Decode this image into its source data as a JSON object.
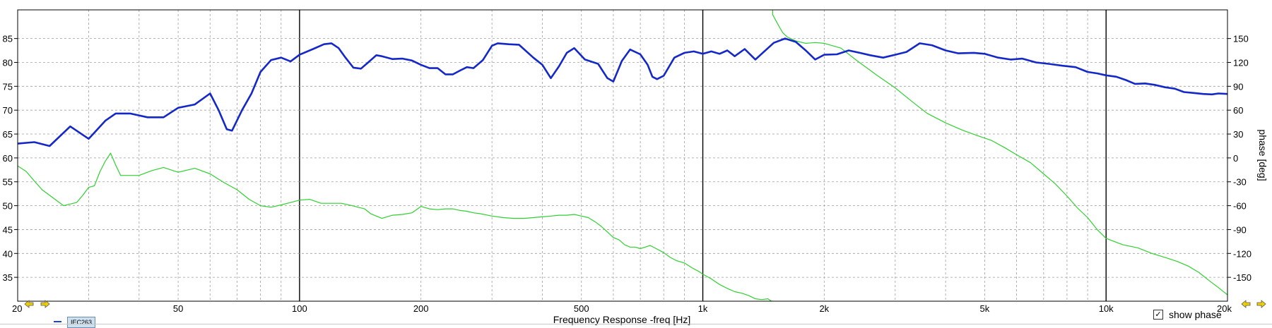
{
  "chart_data": {
    "type": "line",
    "xlabel": "Frequency Response -freq [Hz]",
    "ylabel_right": "phase [deg]",
    "x_scale": "log",
    "xlim": [
      20,
      20000
    ],
    "ylim_left": [
      30,
      91
    ],
    "ylim_right": [
      -180,
      186
    ],
    "x_ticks": [
      {
        "value": 20,
        "label": "20"
      },
      {
        "value": 50,
        "label": "50"
      },
      {
        "value": 100,
        "label": "100"
      },
      {
        "value": 200,
        "label": "200"
      },
      {
        "value": 500,
        "label": "500"
      },
      {
        "value": 1000,
        "label": "1k"
      },
      {
        "value": 2000,
        "label": "2k"
      },
      {
        "value": 5000,
        "label": "5k"
      },
      {
        "value": 10000,
        "label": "10k"
      },
      {
        "value": 20000,
        "label": "20k"
      }
    ],
    "y_ticks_left": [
      "35",
      "40",
      "45",
      "50",
      "55",
      "60",
      "65",
      "70",
      "75",
      "80",
      "85"
    ],
    "y_ticks_right": [
      "-150",
      "-120",
      "-90",
      "-60",
      "-30",
      "0",
      "30",
      "60",
      "90",
      "120",
      "150"
    ],
    "grid": true,
    "series": [
      {
        "name": "IEC263",
        "axis": "left",
        "color": "#1428c8",
        "points": [
          [
            20,
            63
          ],
          [
            22,
            63.3
          ],
          [
            24,
            62.5
          ],
          [
            27,
            66.6
          ],
          [
            30,
            64
          ],
          [
            33,
            67.8
          ],
          [
            35,
            69.3
          ],
          [
            38,
            69.3
          ],
          [
            42,
            68.5
          ],
          [
            46,
            68.5
          ],
          [
            50,
            70.5
          ],
          [
            55,
            71.2
          ],
          [
            60,
            73.5
          ],
          [
            63,
            70
          ],
          [
            66,
            66
          ],
          [
            68,
            65.7
          ],
          [
            72,
            70
          ],
          [
            76,
            73.5
          ],
          [
            80,
            78
          ],
          [
            85,
            80.5
          ],
          [
            90,
            81
          ],
          [
            95,
            80.2
          ],
          [
            100,
            81.6
          ],
          [
            108,
            82.8
          ],
          [
            115,
            83.8
          ],
          [
            120,
            84
          ],
          [
            125,
            83
          ],
          [
            130,
            81
          ],
          [
            136,
            78.9
          ],
          [
            142,
            78.7
          ],
          [
            148,
            80
          ],
          [
            155,
            81.5
          ],
          [
            160,
            81.3
          ],
          [
            170,
            80.7
          ],
          [
            180,
            80.8
          ],
          [
            190,
            80.4
          ],
          [
            200,
            79.5
          ],
          [
            210,
            78.8
          ],
          [
            220,
            78.8
          ],
          [
            230,
            77.5
          ],
          [
            240,
            77.5
          ],
          [
            250,
            78.3
          ],
          [
            260,
            79
          ],
          [
            270,
            78.8
          ],
          [
            285,
            80.5
          ],
          [
            300,
            83.5
          ],
          [
            310,
            84
          ],
          [
            330,
            83.8
          ],
          [
            350,
            83.7
          ],
          [
            380,
            81
          ],
          [
            400,
            79.5
          ],
          [
            420,
            76.7
          ],
          [
            440,
            79.2
          ],
          [
            460,
            82
          ],
          [
            480,
            83
          ],
          [
            510,
            80.6
          ],
          [
            550,
            79.7
          ],
          [
            580,
            76.7
          ],
          [
            600,
            76
          ],
          [
            630,
            80.3
          ],
          [
            660,
            82.7
          ],
          [
            700,
            81.7
          ],
          [
            730,
            79.5
          ],
          [
            750,
            77
          ],
          [
            770,
            76.5
          ],
          [
            800,
            77.2
          ],
          [
            850,
            81
          ],
          [
            900,
            82
          ],
          [
            950,
            82.3
          ],
          [
            1000,
            81.8
          ],
          [
            1050,
            82.3
          ],
          [
            1100,
            81.8
          ],
          [
            1150,
            82.5
          ],
          [
            1200,
            81.3
          ],
          [
            1270,
            82.8
          ],
          [
            1350,
            80.6
          ],
          [
            1420,
            82.3
          ],
          [
            1500,
            84.1
          ],
          [
            1600,
            85
          ],
          [
            1700,
            84.3
          ],
          [
            1800,
            82.5
          ],
          [
            1900,
            80.6
          ],
          [
            2000,
            81.6
          ],
          [
            2150,
            81.7
          ],
          [
            2300,
            82.5
          ],
          [
            2450,
            82
          ],
          [
            2600,
            81.5
          ],
          [
            2800,
            81
          ],
          [
            3000,
            81.6
          ],
          [
            3200,
            82.2
          ],
          [
            3450,
            84
          ],
          [
            3700,
            83.6
          ],
          [
            4000,
            82.5
          ],
          [
            4300,
            81.9
          ],
          [
            4700,
            82
          ],
          [
            5000,
            81.8
          ],
          [
            5400,
            81
          ],
          [
            5800,
            80.6
          ],
          [
            6200,
            80.8
          ],
          [
            6700,
            80
          ],
          [
            7200,
            79.7
          ],
          [
            7800,
            79.3
          ],
          [
            8400,
            79
          ],
          [
            9000,
            78
          ],
          [
            9500,
            77.7
          ],
          [
            10000,
            77.3
          ],
          [
            10600,
            77
          ],
          [
            11200,
            76.3
          ],
          [
            11800,
            75.5
          ],
          [
            12500,
            75.6
          ],
          [
            13200,
            75.3
          ],
          [
            14000,
            74.8
          ],
          [
            14800,
            74.5
          ],
          [
            15600,
            73.8
          ],
          [
            16500,
            73.6
          ],
          [
            17400,
            73.4
          ],
          [
            18300,
            73.3
          ],
          [
            19000,
            73.5
          ],
          [
            20000,
            73.4
          ]
        ]
      },
      {
        "name": "phase",
        "axis": "right",
        "color": "#2fd02f",
        "points": [
          [
            20,
            -10
          ],
          [
            21,
            -17
          ],
          [
            22,
            -29
          ],
          [
            23,
            -40
          ],
          [
            26,
            -60
          ],
          [
            28,
            -56
          ],
          [
            29,
            -47
          ],
          [
            30,
            -37
          ],
          [
            31,
            -35
          ],
          [
            32,
            -17
          ],
          [
            33,
            -4
          ],
          [
            34,
            6
          ],
          [
            35,
            -9
          ],
          [
            36,
            -22
          ],
          [
            40,
            -22
          ],
          [
            43,
            -16
          ],
          [
            46,
            -12
          ],
          [
            50,
            -18
          ],
          [
            55,
            -13
          ],
          [
            60,
            -20
          ],
          [
            65,
            -31
          ],
          [
            70,
            -40
          ],
          [
            75,
            -52
          ],
          [
            80,
            -60
          ],
          [
            85,
            -62
          ],
          [
            90,
            -59
          ],
          [
            95,
            -56
          ],
          [
            100,
            -53
          ],
          [
            106,
            -52
          ],
          [
            113,
            -57
          ],
          [
            120,
            -57
          ],
          [
            127,
            -57
          ],
          [
            135,
            -60
          ],
          [
            145,
            -64
          ],
          [
            150,
            -70
          ],
          [
            160,
            -76
          ],
          [
            170,
            -72
          ],
          [
            180,
            -71
          ],
          [
            190,
            -69
          ],
          [
            200,
            -61
          ],
          [
            210,
            -64
          ],
          [
            220,
            -65
          ],
          [
            230,
            -64
          ],
          [
            240,
            -64
          ],
          [
            250,
            -66
          ],
          [
            260,
            -67
          ],
          [
            270,
            -69
          ],
          [
            280,
            -70
          ],
          [
            300,
            -73
          ],
          [
            320,
            -75
          ],
          [
            340,
            -76
          ],
          [
            360,
            -76
          ],
          [
            380,
            -75
          ],
          [
            400,
            -74
          ],
          [
            420,
            -73
          ],
          [
            440,
            -72
          ],
          [
            460,
            -72
          ],
          [
            480,
            -71
          ],
          [
            500,
            -73
          ],
          [
            520,
            -75
          ],
          [
            540,
            -80
          ],
          [
            560,
            -86
          ],
          [
            580,
            -93
          ],
          [
            600,
            -100
          ],
          [
            620,
            -103
          ],
          [
            640,
            -109
          ],
          [
            660,
            -112
          ],
          [
            680,
            -112
          ],
          [
            700,
            -114
          ],
          [
            720,
            -112
          ],
          [
            740,
            -110
          ],
          [
            760,
            -113
          ],
          [
            780,
            -116
          ],
          [
            800,
            -119
          ],
          [
            830,
            -125
          ],
          [
            860,
            -129
          ],
          [
            900,
            -132
          ],
          [
            940,
            -138
          ],
          [
            980,
            -143
          ],
          [
            1000,
            -146
          ],
          [
            1050,
            -152
          ],
          [
            1100,
            -159
          ],
          [
            1150,
            -164
          ],
          [
            1200,
            -168
          ],
          [
            1250,
            -170
          ],
          [
            1300,
            -173
          ],
          [
            1350,
            -177
          ],
          [
            1400,
            -178
          ],
          [
            1450,
            -177
          ],
          [
            1480,
            -180
          ],
          [
            1490,
            180
          ],
          [
            1520,
            172
          ],
          [
            1550,
            164
          ],
          [
            1580,
            157
          ],
          [
            1620,
            152
          ],
          [
            1700,
            147
          ],
          [
            1800,
            144
          ],
          [
            1900,
            145
          ],
          [
            2000,
            144
          ],
          [
            2200,
            138
          ],
          [
            2400,
            123
          ],
          [
            2700,
            104
          ],
          [
            3000,
            88
          ],
          [
            3300,
            71
          ],
          [
            3600,
            56
          ],
          [
            4000,
            44
          ],
          [
            4400,
            35
          ],
          [
            4800,
            28
          ],
          [
            5200,
            22
          ],
          [
            5600,
            13
          ],
          [
            6000,
            4
          ],
          [
            6500,
            -6
          ],
          [
            7000,
            -20
          ],
          [
            7500,
            -33
          ],
          [
            8000,
            -48
          ],
          [
            8500,
            -63
          ],
          [
            9000,
            -75
          ],
          [
            9500,
            -90
          ],
          [
            10000,
            -101
          ],
          [
            11000,
            -109
          ],
          [
            12000,
            -113
          ],
          [
            13000,
            -120
          ],
          [
            14000,
            -125
          ],
          [
            15000,
            -130
          ],
          [
            16000,
            -136
          ],
          [
            17000,
            -144
          ],
          [
            18000,
            -154
          ],
          [
            19000,
            -163
          ],
          [
            20000,
            -172
          ]
        ]
      }
    ]
  },
  "legend": {
    "item_label": "IEC263"
  },
  "controls": {
    "show_phase_label": "show phase",
    "show_phase_checked": true
  },
  "colors": {
    "frame": "#000000",
    "grid": "#9e9e9e",
    "marker_yellow": "#f0d000"
  }
}
